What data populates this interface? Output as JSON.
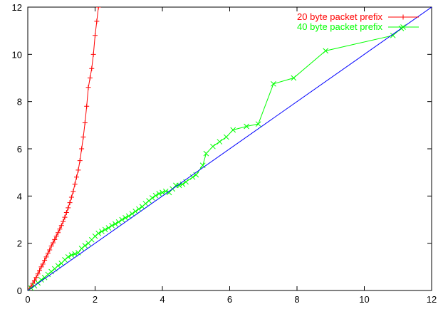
{
  "chart_data": {
    "type": "line",
    "title": "",
    "xlabel": "",
    "ylabel": "",
    "xlim": [
      0,
      12
    ],
    "ylim": [
      0,
      12
    ],
    "xticks": [
      0,
      2,
      4,
      6,
      8,
      10,
      12
    ],
    "yticks": [
      0,
      2,
      4,
      6,
      8,
      10,
      12
    ],
    "legend_position": "top-right",
    "grid": false,
    "series": [
      {
        "name": "20 byte packet prefix",
        "color": "#ff0000",
        "marker": "plus",
        "x": [
          0.0,
          0.05,
          0.1,
          0.15,
          0.2,
          0.25,
          0.3,
          0.35,
          0.4,
          0.45,
          0.5,
          0.55,
          0.6,
          0.65,
          0.7,
          0.75,
          0.8,
          0.85,
          0.9,
          0.95,
          1.0,
          1.05,
          1.1,
          1.15,
          1.2,
          1.25,
          1.3,
          1.35,
          1.4,
          1.45,
          1.5,
          1.55,
          1.6,
          1.65,
          1.7,
          1.75,
          1.8,
          1.85,
          1.9,
          1.95,
          2.0,
          2.05,
          2.1
        ],
        "y": [
          0.0,
          0.08,
          0.18,
          0.3,
          0.42,
          0.55,
          0.7,
          0.85,
          1.0,
          1.12,
          1.28,
          1.42,
          1.58,
          1.72,
          1.88,
          2.02,
          2.16,
          2.3,
          2.45,
          2.6,
          2.75,
          2.92,
          3.1,
          3.3,
          3.5,
          3.72,
          3.95,
          4.2,
          4.5,
          4.8,
          5.1,
          5.5,
          6.0,
          6.5,
          7.1,
          7.8,
          8.6,
          9.0,
          9.4,
          10.0,
          10.8,
          11.4,
          12.0
        ]
      },
      {
        "name": "40 byte packet prefix",
        "color": "#00ff00",
        "marker": "cross",
        "x": [
          0.0,
          0.1,
          0.2,
          0.3,
          0.4,
          0.5,
          0.6,
          0.7,
          0.8,
          0.9,
          1.0,
          1.1,
          1.2,
          1.3,
          1.4,
          1.5,
          1.6,
          1.7,
          1.8,
          1.9,
          2.0,
          2.1,
          2.2,
          2.3,
          2.4,
          2.5,
          2.6,
          2.7,
          2.8,
          2.9,
          3.0,
          3.1,
          3.2,
          3.3,
          3.4,
          3.5,
          3.6,
          3.7,
          3.8,
          3.9,
          4.0,
          4.1,
          4.2,
          4.3,
          4.4,
          4.5,
          4.6,
          4.7,
          4.9,
          5.0,
          5.2,
          5.3,
          5.5,
          5.7,
          5.9,
          6.1,
          6.5,
          6.85,
          7.3,
          7.9,
          8.85,
          10.85,
          11.1
        ],
        "y": [
          0.0,
          0.1,
          0.2,
          0.32,
          0.45,
          0.55,
          0.68,
          0.8,
          0.92,
          1.05,
          1.15,
          1.3,
          1.42,
          1.5,
          1.55,
          1.6,
          1.78,
          1.9,
          2.0,
          2.15,
          2.3,
          2.42,
          2.5,
          2.58,
          2.65,
          2.75,
          2.82,
          2.9,
          3.0,
          3.08,
          3.15,
          3.25,
          3.35,
          3.45,
          3.55,
          3.68,
          3.8,
          3.92,
          4.02,
          4.1,
          4.15,
          4.2,
          4.15,
          4.3,
          4.45,
          4.45,
          4.5,
          4.6,
          4.8,
          4.9,
          5.3,
          5.8,
          6.1,
          6.3,
          6.5,
          6.8,
          6.95,
          7.05,
          8.75,
          9.0,
          10.15,
          10.8,
          11.1
        ]
      },
      {
        "name": "",
        "color": "#0000ff",
        "marker": "none",
        "x": [
          0,
          12
        ],
        "y": [
          0,
          12
        ]
      }
    ]
  }
}
